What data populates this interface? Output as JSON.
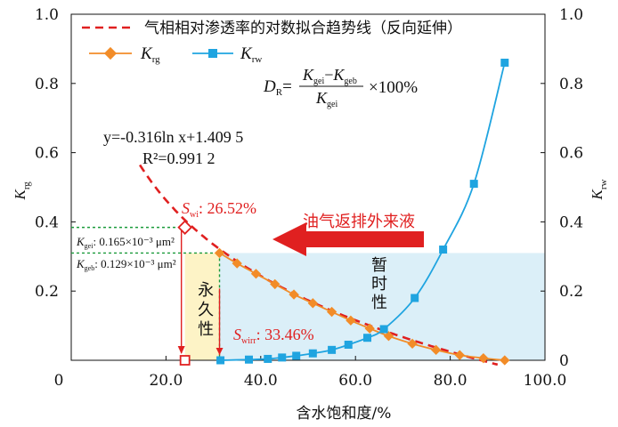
{
  "chart_data": {
    "type": "line",
    "x_label": "含水饱和度/%",
    "y_left_label_main": "K",
    "y_left_label_sub": "rg",
    "y_right_label_main": "K",
    "y_right_label_sub": "rw",
    "xlim": [
      0,
      100
    ],
    "ylim": [
      0,
      1.0
    ],
    "x_ticks": [
      "0",
      "20.0",
      "40.0",
      "60.0",
      "80.0",
      "100.0"
    ],
    "y_ticks": [
      "0",
      "0.2",
      "0.4",
      "0.6",
      "0.8",
      "1.0"
    ],
    "legend": {
      "trend_label": "气相相对渗透率的对数拟合趋势线（反向延伸）",
      "krg_main": "K",
      "krg_sub": "rg",
      "krw_main": "K",
      "krw_sub": "rw"
    },
    "series": [
      {
        "name": "Krg",
        "color": "#f28c28",
        "marker": "diamond",
        "x": [
          31.3,
          35.0,
          39.0,
          43.0,
          47.0,
          51.0,
          55.0,
          59.0,
          63.0,
          67.0,
          72.0,
          77.0,
          82.0,
          87.0,
          91.5
        ],
        "y": [
          0.31,
          0.28,
          0.25,
          0.22,
          0.19,
          0.165,
          0.14,
          0.115,
          0.092,
          0.07,
          0.048,
          0.03,
          0.015,
          0.006,
          0.0
        ]
      },
      {
        "name": "Krw",
        "color": "#1fa4e0",
        "marker": "square",
        "x": [
          31.5,
          37.5,
          41.5,
          44.5,
          47.5,
          51.0,
          55.0,
          58.5,
          62.5,
          66.0,
          72.5,
          78.5,
          85.0,
          91.5
        ],
        "y": [
          0.0,
          0.002,
          0.004,
          0.008,
          0.013,
          0.02,
          0.03,
          0.045,
          0.065,
          0.09,
          0.18,
          0.32,
          0.51,
          0.86
        ]
      },
      {
        "name": "气相相对渗透率的对数拟合趋势线（反向延伸）",
        "color": "#e02020",
        "style": "dashed",
        "equation_a": -0.316,
        "equation_b": 1.4095,
        "x_range": [
          14.5,
          90
        ]
      }
    ],
    "annotations": {
      "equation_line1": "y=-0.316ln x+1.409 5",
      "equation_line2": "R²=0.991 2",
      "dr_formula_lhs": "D",
      "dr_formula_lhs_sub": "R",
      "dr_formula_num_a": "K",
      "dr_formula_num_a_sub": "gei",
      "dr_formula_num_b": "K",
      "dr_formula_num_b_sub": "geb",
      "dr_formula_den": "K",
      "dr_formula_den_sub": "gei",
      "dr_formula_tail": "×100%",
      "swi_label": "S",
      "swi_sub": "wi",
      "swi_value": ": 26.52%",
      "swirr_label": "S",
      "swirr_sub": "wirr",
      "swirr_value": ": 33.46%",
      "kgei_label": "K",
      "kgei_sub": "gei",
      "kgei_value": ": 0.165×10⁻³ μm²",
      "kgeb_label": "K",
      "kgeb_sub": "geb",
      "kgeb_value": ": 0.129×10⁻³ μm²",
      "arrow_text": "油气返排外来液",
      "permanent_text": "永久性",
      "temporary_text": "暂时性",
      "swi_point": [
        24,
        0.384
      ],
      "swi_x_point": [
        24,
        0.0
      ],
      "swirr_top": [
        31.3,
        0.31
      ],
      "shade_y": 0.31
    }
  }
}
